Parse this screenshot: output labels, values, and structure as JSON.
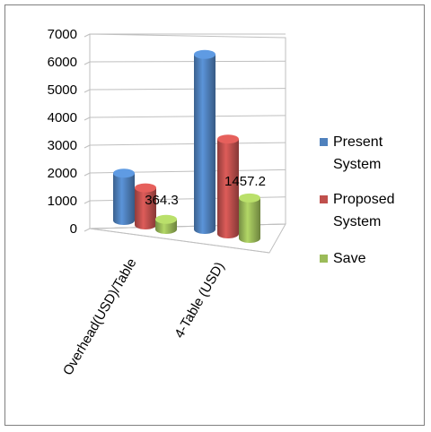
{
  "chart_data": {
    "type": "bar",
    "categories": [
      "Overhead(USD)/Table",
      "4-Table (USD)"
    ],
    "series": [
      {
        "name": "Present System",
        "values": [
          1700,
          6300
        ],
        "color": "#4f81bd"
      },
      {
        "name": "Proposed System",
        "values": [
          1335.7,
          3413.3
        ],
        "color": "#c0504d"
      },
      {
        "name": "Save",
        "values": [
          364.3,
          1457.2
        ],
        "color": "#9bbb59"
      }
    ],
    "data_labels": [
      {
        "series": 1,
        "category": 0,
        "text": "364.3"
      },
      {
        "series": 1,
        "category": 1,
        "text": "1457.2"
      }
    ],
    "yticks": [
      "0",
      "1000",
      "2000",
      "3000",
      "4000",
      "5000",
      "6000",
      "7000"
    ],
    "ylim": [
      0,
      7000
    ],
    "grid": true,
    "legend": "right"
  }
}
